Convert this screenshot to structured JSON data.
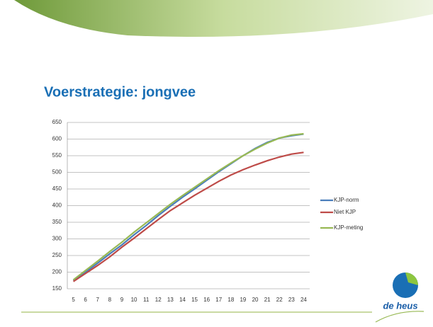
{
  "chart_data": {
    "type": "line",
    "title": "Voerstrategie: jongvee",
    "categories": [
      "5",
      "6",
      "7",
      "8",
      "9",
      "10",
      "11",
      "12",
      "13",
      "14",
      "15",
      "16",
      "17",
      "18",
      "19",
      "20",
      "21",
      "22",
      "23",
      "24"
    ],
    "series": [
      {
        "name": "KJP-norm",
        "color": "#4a7ebb",
        "values": [
          175,
          200,
          227,
          255,
          282,
          312,
          340,
          370,
          398,
          425,
          450,
          476,
          502,
          526,
          550,
          572,
          590,
          603,
          610,
          615
        ]
      },
      {
        "name": "Niet KJP",
        "color": "#be4b48",
        "values": [
          172,
          196,
          220,
          246,
          275,
          302,
          330,
          358,
          385,
          408,
          431,
          452,
          473,
          492,
          508,
          522,
          535,
          546,
          555,
          560
        ]
      },
      {
        "name": "KJP-meting",
        "color": "#98b954",
        "values": [
          177,
          205,
          233,
          262,
          290,
          320,
          348,
          376,
          404,
          430,
          455,
          480,
          505,
          528,
          550,
          570,
          588,
          603,
          612,
          616
        ]
      }
    ],
    "ylim": [
      150,
      650
    ],
    "yticks": [
      150,
      200,
      250,
      300,
      350,
      400,
      450,
      500,
      550,
      600,
      650
    ],
    "grid": true,
    "legend": "right"
  },
  "logo": {
    "text": "de heus"
  }
}
